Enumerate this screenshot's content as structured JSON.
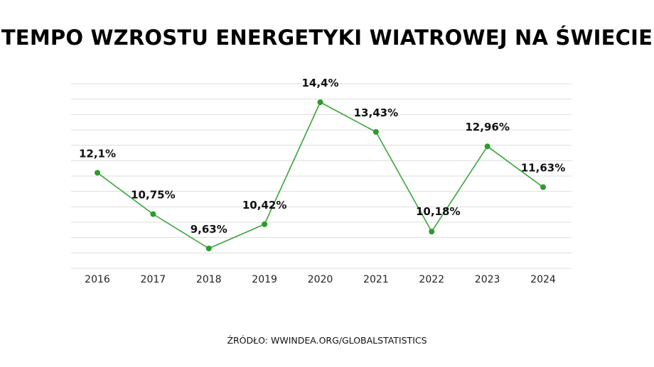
{
  "title": "TEMPO WZROSTU ENERGETYKI WIATROWEJ NA ŚWIECIE",
  "source": "ŹRÓDŁO: WWINDEA.ORG/GLOBALSTATISTICS",
  "colors": {
    "line": "#3aa53a",
    "point": "#2e9a2e",
    "grid": "#dddddd",
    "text": "#111111"
  },
  "chart_data": {
    "type": "line",
    "title": "TEMPO WZROSTU ENERGETYKI WIATROWEJ NA ŚWIECIE",
    "categories": [
      "2016",
      "2017",
      "2018",
      "2019",
      "2020",
      "2021",
      "2022",
      "2023",
      "2024"
    ],
    "series": [
      {
        "values": [
          12.1,
          10.75,
          9.63,
          10.42,
          14.4,
          13.43,
          10.18,
          12.96,
          11.63
        ],
        "labels": [
          "12,1%",
          "10,75%",
          "9,63%",
          "10,42%",
          "14,4%",
          "13,43%",
          "10,18%",
          "12,96%",
          "11,63%"
        ]
      }
    ],
    "ylim": [
      9.0,
      15.0
    ],
    "grid": true,
    "legend": "none",
    "xlabel": "",
    "ylabel": ""
  }
}
